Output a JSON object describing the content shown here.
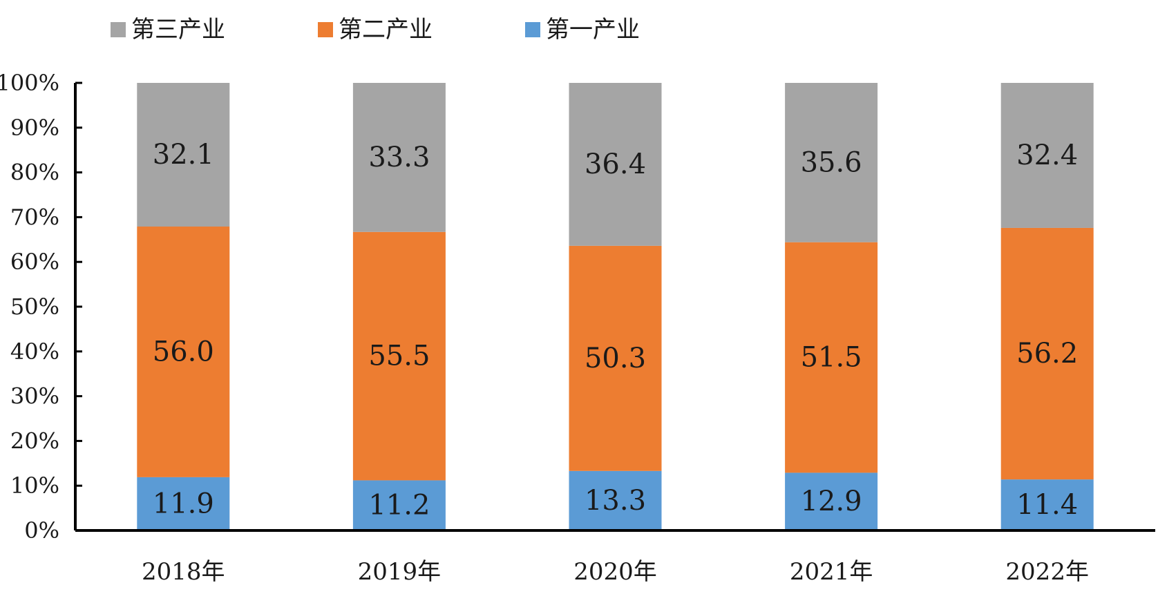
{
  "chart_data": {
    "type": "bar",
    "stacked": true,
    "normalized": true,
    "categories": [
      "2018年",
      "2019年",
      "2020年",
      "2021年",
      "2022年"
    ],
    "series": [
      {
        "name": "第一产业",
        "color": "#5b9bd5",
        "values": [
          11.9,
          11.2,
          13.3,
          12.9,
          11.4
        ]
      },
      {
        "name": "第二产业",
        "color": "#ed7d31",
        "values": [
          56.0,
          55.5,
          50.3,
          51.5,
          56.2
        ]
      },
      {
        "name": "第三产业",
        "color": "#a5a5a5",
        "values": [
          32.1,
          33.3,
          36.4,
          35.6,
          32.4
        ]
      }
    ],
    "data_labels": [
      [
        "11.9",
        "11.2",
        "13.3",
        "12.9",
        "11.4"
      ],
      [
        "56.0",
        "55.5",
        "50.3",
        "51.5",
        "56.2"
      ],
      [
        "32.1",
        "33.3",
        "36.4",
        "35.6",
        "32.4"
      ]
    ],
    "legend_order": [
      "第三产业",
      "第二产业",
      "第一产业"
    ],
    "legend_position": "top",
    "ylim": [
      0,
      100
    ],
    "yticks": [
      "0%",
      "10%",
      "20%",
      "30%",
      "40%",
      "50%",
      "60%",
      "70%",
      "80%",
      "90%",
      "100%"
    ],
    "grid": false,
    "title": "",
    "xlabel": "",
    "ylabel": ""
  }
}
